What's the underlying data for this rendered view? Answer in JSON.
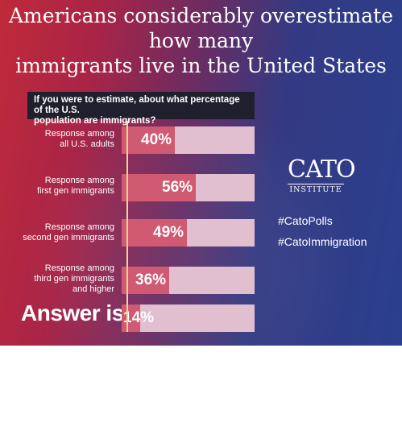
{
  "title": {
    "line1": "Americans considerably overestimate how many",
    "line2": "immigrants live in the United States"
  },
  "question": {
    "line1": "If you were to estimate, about what percentage of the U.S.",
    "line2": "population are immigrants?"
  },
  "chart_data": {
    "type": "bar",
    "orientation": "horizontal",
    "categories": [
      "Response among all U.S. adults",
      "Response among first gen immigrants",
      "Response among second gen immigrants",
      "Response among third gen immigrants and higher",
      "Answer is"
    ],
    "values": [
      40,
      56,
      49,
      36,
      14
    ],
    "value_labels": [
      "40%",
      "56%",
      "49%",
      "36%",
      "14%"
    ],
    "xlim": [
      0,
      100
    ],
    "colors": {
      "fill": "#cf5a72",
      "track": "#e2bfcf",
      "marker": "#f6d78a"
    }
  },
  "labels": {
    "row0": [
      "Response among",
      "all U.S. adults"
    ],
    "row1": [
      "Response among",
      "first gen immigrants"
    ],
    "row2": [
      "Response among",
      "second gen immigrants"
    ],
    "row3": [
      "Response among",
      "third gen immigrants",
      "and higher"
    ],
    "answer": "Answer is"
  },
  "branding": {
    "logo_word": "CATO",
    "logo_sub": "INSTITUTE",
    "hashtags": [
      "#CatoPolls",
      "#CatoImmigration"
    ]
  }
}
